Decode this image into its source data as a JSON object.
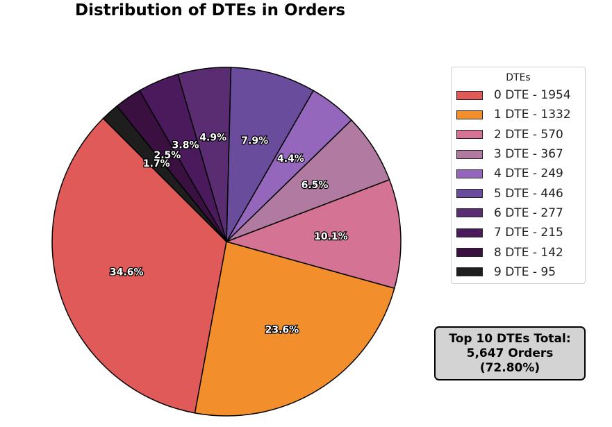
{
  "chart_data": {
    "type": "pie",
    "title": "Distribution of DTEs in Orders",
    "legend_title": "DTEs",
    "legend_placement": "right",
    "slices": [
      {
        "label": "0 DTE - 1954",
        "value": 1954,
        "pct_label": "34.6%",
        "color": "#e05a5a"
      },
      {
        "label": "1 DTE - 1332",
        "value": 1332,
        "pct_label": "23.6%",
        "color": "#f28e2b"
      },
      {
        "label": "2 DTE - 570",
        "value": 570,
        "pct_label": "10.1%",
        "color": "#d47394"
      },
      {
        "label": "3 DTE - 367",
        "value": 367,
        "pct_label": "6.5%",
        "color": "#b07aa1"
      },
      {
        "label": "4 DTE - 249",
        "value": 249,
        "pct_label": "4.4%",
        "color": "#9467bd"
      },
      {
        "label": "5 DTE - 446",
        "value": 446,
        "pct_label": "7.9%",
        "color": "#6a4c9c"
      },
      {
        "label": "6 DTE - 277",
        "value": 277,
        "pct_label": "4.9%",
        "color": "#5a2d73"
      },
      {
        "label": "7 DTE - 215",
        "value": 215,
        "pct_label": "3.8%",
        "color": "#4a1a5c"
      },
      {
        "label": "8 DTE - 142",
        "value": 142,
        "pct_label": "2.5%",
        "color": "#3a1040"
      },
      {
        "label": "9 DTE - 95",
        "value": 95,
        "pct_label": "1.7%",
        "color": "#1e1e1e"
      }
    ]
  },
  "summary": {
    "line1": "Top 10 DTEs Total:",
    "line2": "5,647 Orders",
    "line3": "(72.80%)"
  }
}
